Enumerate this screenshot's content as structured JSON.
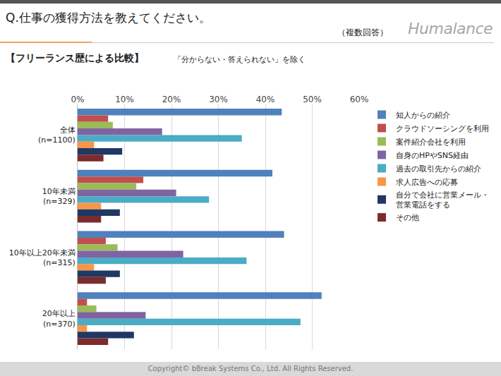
{
  "chart_data": {
    "type": "bar",
    "orientation": "horizontal",
    "title": "Q.仕事の獲得方法を教えてください。",
    "subtitle": "【フリーランス歴による比較】",
    "annotations": [
      "（複数回答）",
      "「分からない・答えられない」を除く",
      "Humalance",
      "Copyright©  bBreak Systems Co., Ltd.  All Rights Reserved."
    ],
    "categories": [
      "全体\n(n=1100)",
      "10年未満\n(n=329)",
      "10年以上20年未満\n(n=315)",
      "20年以上\n(n=370)"
    ],
    "series": [
      {
        "name": "知人からの紹介",
        "color": "#4f81bd",
        "values": [
          43.5,
          41.5,
          44,
          52
        ]
      },
      {
        "name": "クラウドソーシングを利用",
        "color": "#c0504d",
        "values": [
          6.5,
          14,
          6,
          2
        ]
      },
      {
        "name": "案件紹介会社を利用",
        "color": "#9bbb59",
        "values": [
          7.5,
          12.5,
          8.5,
          4
        ]
      },
      {
        "name": "自身のHPやSNS経由",
        "color": "#8064a2",
        "values": [
          18,
          21,
          22.5,
          14.5
        ]
      },
      {
        "name": "過去の取引先からの紹介",
        "color": "#4bacc6",
        "values": [
          35,
          28,
          36,
          47.5
        ]
      },
      {
        "name": "求人広告への応募",
        "color": "#f79646",
        "values": [
          3.5,
          5,
          3.5,
          2
        ]
      },
      {
        "name": "自分で会社に営業メール・\n営業電話をする",
        "color": "#1f3864",
        "values": [
          9.5,
          9,
          9,
          12
        ]
      },
      {
        "name": "その他",
        "color": "#7b2c2c",
        "values": [
          5.5,
          5,
          6,
          6.5
        ]
      }
    ],
    "xlim": [
      0,
      60
    ],
    "xticks": [
      {
        "value": 0,
        "label": "0%"
      },
      {
        "value": 10,
        "label": "10%"
      },
      {
        "value": 20,
        "label": "20%"
      },
      {
        "value": 30,
        "label": "30%"
      },
      {
        "value": 40,
        "label": "40%"
      },
      {
        "value": 50,
        "label": "50%"
      },
      {
        "value": 60,
        "label": "60%"
      }
    ],
    "grid": true,
    "legend": "right"
  }
}
